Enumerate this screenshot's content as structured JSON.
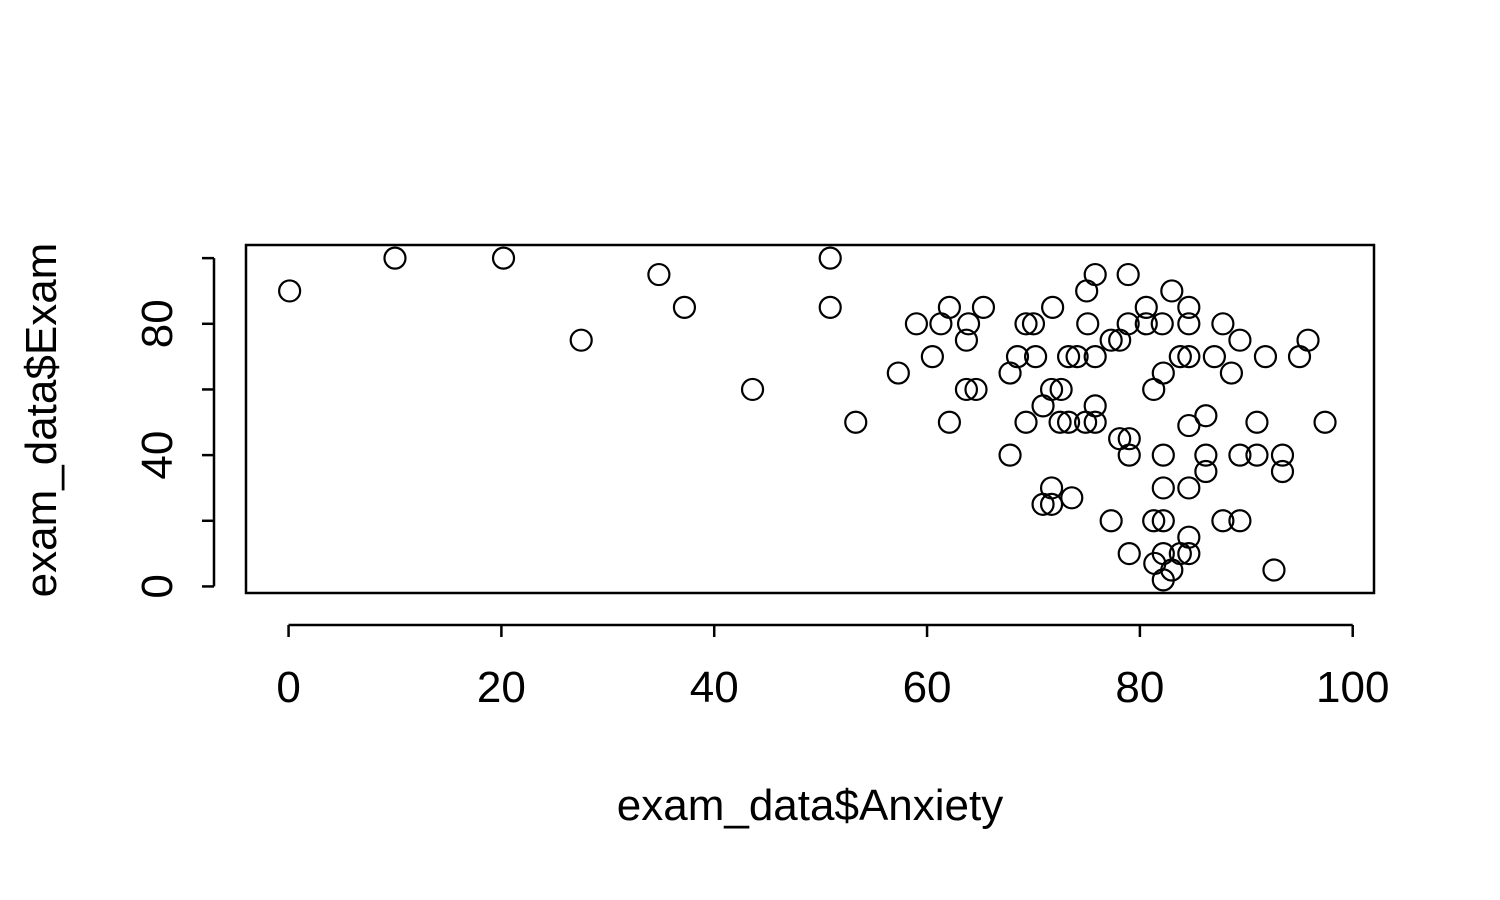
{
  "chart_data": {
    "type": "scatter",
    "xlabel": "exam_data$Anxiety",
    "ylabel": "exam_data$Exam",
    "xlim": [
      -4,
      102
    ],
    "ylim": [
      -2,
      104
    ],
    "xticks": [
      0,
      20,
      40,
      60,
      80,
      100
    ],
    "yticks": [
      0,
      20,
      40,
      60,
      80,
      100
    ],
    "ytick_labels": [
      "0",
      "",
      "40",
      "",
      "80",
      ""
    ],
    "marker_color": "#000000",
    "points": [
      {
        "x": 0.1,
        "y": 90
      },
      {
        "x": 10,
        "y": 100
      },
      {
        "x": 20.2,
        "y": 100
      },
      {
        "x": 27.5,
        "y": 75
      },
      {
        "x": 34.8,
        "y": 95
      },
      {
        "x": 37.2,
        "y": 85
      },
      {
        "x": 43.6,
        "y": 60
      },
      {
        "x": 50.9,
        "y": 100
      },
      {
        "x": 50.9,
        "y": 85
      },
      {
        "x": 53.3,
        "y": 50
      },
      {
        "x": 57.3,
        "y": 65
      },
      {
        "x": 59,
        "y": 80
      },
      {
        "x": 60.5,
        "y": 70
      },
      {
        "x": 61.3,
        "y": 80
      },
      {
        "x": 62.1,
        "y": 85
      },
      {
        "x": 62.1,
        "y": 50
      },
      {
        "x": 63.7,
        "y": 75
      },
      {
        "x": 63.7,
        "y": 60
      },
      {
        "x": 63.9,
        "y": 80
      },
      {
        "x": 64.6,
        "y": 60
      },
      {
        "x": 65.3,
        "y": 85
      },
      {
        "x": 67.8,
        "y": 65
      },
      {
        "x": 67.8,
        "y": 40
      },
      {
        "x": 68.5,
        "y": 70
      },
      {
        "x": 69.3,
        "y": 80
      },
      {
        "x": 69.3,
        "y": 50
      },
      {
        "x": 70,
        "y": 80
      },
      {
        "x": 70.2,
        "y": 70
      },
      {
        "x": 70.9,
        "y": 55
      },
      {
        "x": 70.9,
        "y": 25
      },
      {
        "x": 71.7,
        "y": 60
      },
      {
        "x": 71.7,
        "y": 30
      },
      {
        "x": 71.7,
        "y": 25
      },
      {
        "x": 71.8,
        "y": 85
      },
      {
        "x": 72.5,
        "y": 50
      },
      {
        "x": 72.6,
        "y": 60
      },
      {
        "x": 73.3,
        "y": 50
      },
      {
        "x": 73.3,
        "y": 70
      },
      {
        "x": 73.6,
        "y": 27
      },
      {
        "x": 74.1,
        "y": 70
      },
      {
        "x": 74.9,
        "y": 50
      },
      {
        "x": 75,
        "y": 90
      },
      {
        "x": 75.1,
        "y": 80
      },
      {
        "x": 75.8,
        "y": 95
      },
      {
        "x": 75.8,
        "y": 70
      },
      {
        "x": 75.8,
        "y": 55
      },
      {
        "x": 75.8,
        "y": 50
      },
      {
        "x": 77.3,
        "y": 75
      },
      {
        "x": 77.3,
        "y": 20
      },
      {
        "x": 78.1,
        "y": 75
      },
      {
        "x": 78.1,
        "y": 45
      },
      {
        "x": 78.9,
        "y": 95
      },
      {
        "x": 78.9,
        "y": 80
      },
      {
        "x": 79,
        "y": 45
      },
      {
        "x": 79,
        "y": 40
      },
      {
        "x": 79,
        "y": 10
      },
      {
        "x": 80.6,
        "y": 80
      },
      {
        "x": 80.6,
        "y": 85
      },
      {
        "x": 81.3,
        "y": 60
      },
      {
        "x": 81.3,
        "y": 20
      },
      {
        "x": 81.4,
        "y": 7
      },
      {
        "x": 82.1,
        "y": 80
      },
      {
        "x": 82.2,
        "y": 65
      },
      {
        "x": 82.2,
        "y": 40
      },
      {
        "x": 82.2,
        "y": 30
      },
      {
        "x": 82.2,
        "y": 20
      },
      {
        "x": 82.2,
        "y": 10
      },
      {
        "x": 82.2,
        "y": 2
      },
      {
        "x": 83,
        "y": 90
      },
      {
        "x": 83,
        "y": 5
      },
      {
        "x": 83.8,
        "y": 70
      },
      {
        "x": 83.8,
        "y": 10
      },
      {
        "x": 84.6,
        "y": 85
      },
      {
        "x": 84.6,
        "y": 80
      },
      {
        "x": 84.6,
        "y": 70
      },
      {
        "x": 84.6,
        "y": 49
      },
      {
        "x": 84.6,
        "y": 30
      },
      {
        "x": 84.6,
        "y": 15
      },
      {
        "x": 84.6,
        "y": 10
      },
      {
        "x": 86.2,
        "y": 52
      },
      {
        "x": 86.2,
        "y": 40
      },
      {
        "x": 86.2,
        "y": 35
      },
      {
        "x": 87,
        "y": 70
      },
      {
        "x": 87.8,
        "y": 80
      },
      {
        "x": 87.8,
        "y": 20
      },
      {
        "x": 88.6,
        "y": 65
      },
      {
        "x": 89.4,
        "y": 75
      },
      {
        "x": 89.4,
        "y": 40
      },
      {
        "x": 89.4,
        "y": 20
      },
      {
        "x": 91,
        "y": 50
      },
      {
        "x": 91,
        "y": 40
      },
      {
        "x": 91.8,
        "y": 70
      },
      {
        "x": 92.6,
        "y": 5
      },
      {
        "x": 93.4,
        "y": 40
      },
      {
        "x": 93.4,
        "y": 35
      },
      {
        "x": 95,
        "y": 70
      },
      {
        "x": 95.8,
        "y": 75
      },
      {
        "x": 97.4,
        "y": 50
      }
    ]
  }
}
